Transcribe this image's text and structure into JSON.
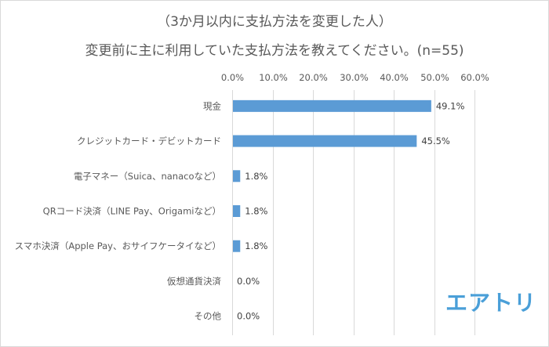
{
  "header": {
    "title_line1": "（3か月以内に支払方法を変更した人）",
    "title_line2": "変更前に主に利用していた支払方法を教えてください。(n=55)"
  },
  "logo": {
    "text": "エアトリ",
    "color": "#4a9fd8"
  },
  "chart_data": {
    "type": "bar",
    "orientation": "horizontal",
    "title": "（3か月以内に支払方法を変更した人） 変更前に主に利用していた支払方法を教えてください。(n=55)",
    "categories": [
      "現金",
      "クレジットカード・デビットカード",
      "電子マネー（Suica、nanacoなど）",
      "QRコード決済（LINE Pay、Origamiなど）",
      "スマホ決済（Apple Pay、おサイフケータイなど）",
      "仮想通貨決済",
      "その他"
    ],
    "values": [
      49.1,
      45.5,
      1.8,
      1.8,
      1.8,
      0.0,
      0.0
    ],
    "data_labels": [
      "49.1%",
      "45.5%",
      "1.8%",
      "1.8%",
      "1.8%",
      "0.0%",
      "0.0%"
    ],
    "xlim": [
      0,
      60
    ],
    "x_ticks": [
      0,
      10,
      20,
      30,
      40,
      50,
      60
    ],
    "x_tick_labels": [
      "0.0%",
      "10.0%",
      "20.0%",
      "30.0%",
      "40.0%",
      "50.0%",
      "60.0%"
    ],
    "x_axis_position": "top",
    "grid": true,
    "bar_color": "#5b9bd5",
    "grid_color": "#d9d9d9",
    "xlabel": "",
    "ylabel": ""
  }
}
